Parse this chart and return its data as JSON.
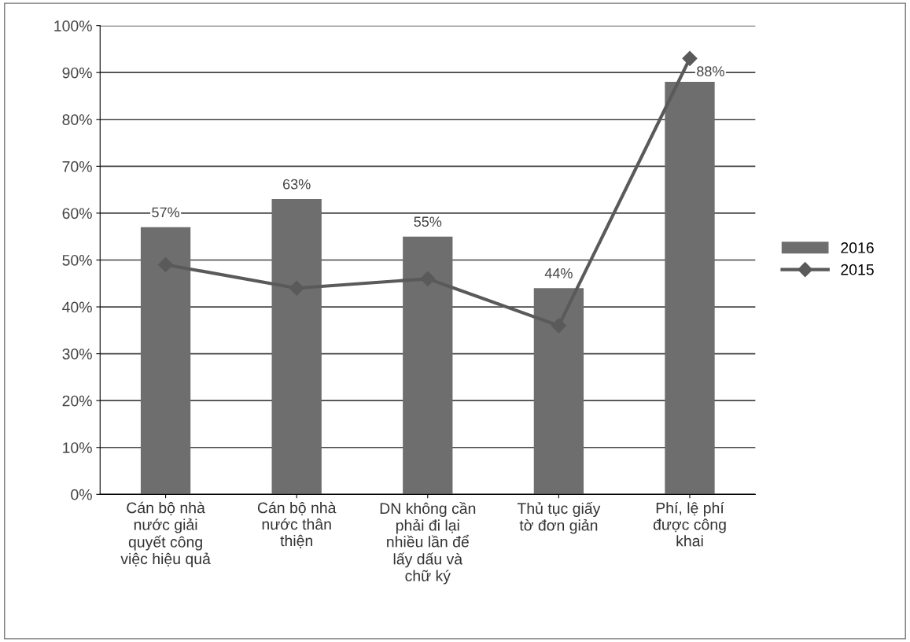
{
  "chart_data": {
    "type": "bar",
    "categories": [
      "Cán bộ nhà\nnước giải\nquyết công\nviệc hiệu quả",
      "Cán bộ nhà\nnước thân\nthiện",
      "DN không cần\nphải đi lại\nnhiều lần để\nlấy dấu và\nchữ ký",
      "Thủ tục giấy\ntờ đơn giản",
      "Phí, lệ phí\nđược công\nkhai"
    ],
    "series": [
      {
        "name": "2016",
        "color": "#6e6e6e",
        "values": [
          57,
          63,
          55,
          44,
          88
        ],
        "value_labels": [
          "57%",
          "63%",
          "55%",
          "44%",
          "88%"
        ]
      },
      {
        "name": "2015",
        "type": "line",
        "color": "#5a5a5a",
        "marker": "diamond",
        "values": [
          49,
          44,
          46,
          36,
          93
        ]
      }
    ],
    "ylim": [
      0,
      100
    ],
    "yticks": [
      {
        "value": 0,
        "label": "0%"
      },
      {
        "value": 10,
        "label": "10%"
      },
      {
        "value": 20,
        "label": "20%"
      },
      {
        "value": 30,
        "label": "30%"
      },
      {
        "value": 40,
        "label": "40%"
      },
      {
        "value": 50,
        "label": "50%"
      },
      {
        "value": 60,
        "label": "60%"
      },
      {
        "value": 70,
        "label": "70%"
      },
      {
        "value": 80,
        "label": "80%"
      },
      {
        "value": 90,
        "label": "90%"
      },
      {
        "value": 100,
        "label": "100%"
      }
    ],
    "grid": "y",
    "legend": "right"
  }
}
